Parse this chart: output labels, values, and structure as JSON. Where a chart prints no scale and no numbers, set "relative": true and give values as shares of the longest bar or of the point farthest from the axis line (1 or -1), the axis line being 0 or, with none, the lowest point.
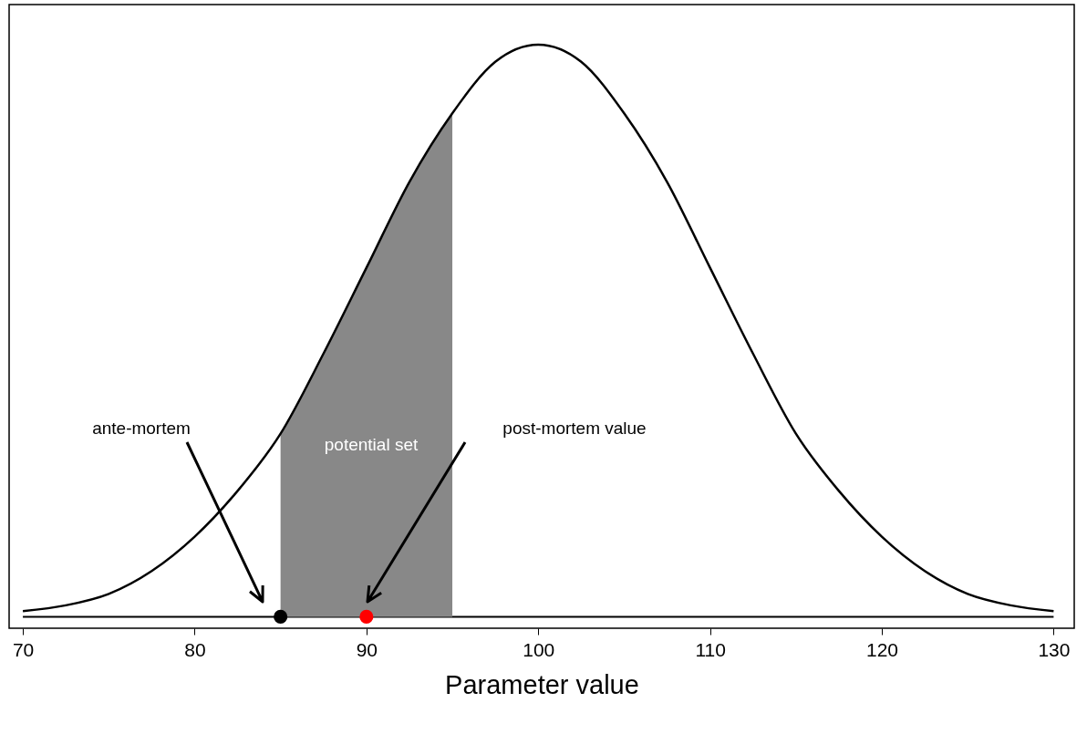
{
  "chart_data": {
    "type": "line",
    "relative": true,
    "xlabel": "Parameter value",
    "xlim": [
      69.2,
      131.2
    ],
    "xticks": [
      70,
      80,
      90,
      100,
      110,
      120,
      130
    ],
    "tick_labels": "x",
    "grid": false,
    "series": [
      {
        "type": "area",
        "color": "#888888",
        "x": [
          85,
          87.5,
          90,
          92.5,
          95
        ],
        "values": [
          0.32,
          0.46,
          0.61,
          0.76,
          0.88
        ]
      },
      {
        "color": "#000000",
        "x": [
          70,
          72.5,
          75,
          77.5,
          80,
          82.5,
          85,
          87.5,
          90,
          92.5,
          95,
          97.5,
          100,
          102.5,
          105,
          107.5,
          110,
          112.5,
          115,
          117.5,
          120,
          122.5,
          125,
          127.5,
          130
        ],
        "values": [
          0.01,
          0.02,
          0.04,
          0.08,
          0.14,
          0.22,
          0.32,
          0.46,
          0.61,
          0.76,
          0.88,
          0.97,
          1,
          0.97,
          0.88,
          0.76,
          0.61,
          0.46,
          0.32,
          0.22,
          0.14,
          0.08,
          0.04,
          0.02,
          0.01
        ]
      },
      {
        "type": "scatter",
        "marker": "circle",
        "x": [
          85,
          90
        ],
        "values": [
          0,
          0
        ],
        "colors": [
          "#000000",
          "#ff0000"
        ]
      }
    ],
    "annotations": [
      "ante-mortem",
      "post-mortem value",
      "potential set"
    ]
  }
}
